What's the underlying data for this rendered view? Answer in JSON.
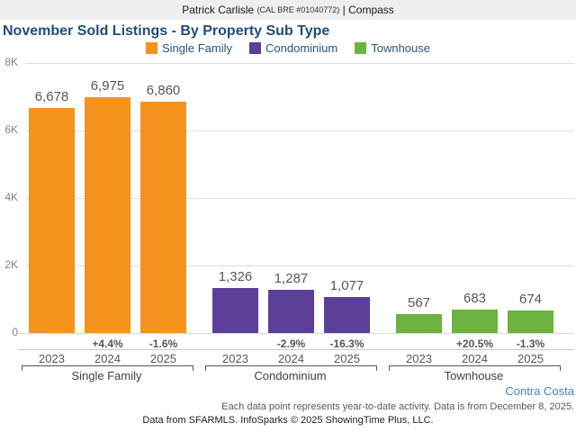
{
  "header": {
    "name": "Patrick Carlisle",
    "license": "(CAL BRE #01040772)",
    "separator": "|",
    "company": "Compass"
  },
  "title": "November Sold Listings - By Property Sub Type",
  "region_label": "Contra Costa",
  "footnote": "Each data point represents year-to-date activity. Data is from December 8, 2025.",
  "attribution": "Data from SFARMLS. InfoSparks © 2025 ShowingTime Plus, LLC.",
  "colors": {
    "single_family": "#f6921e",
    "condominium": "#5b3f99",
    "townhouse": "#6cb33f",
    "title_blue": "#1f4e79",
    "legend_blue": "#26547c",
    "region_blue": "#4a7ebd",
    "header_band": "#efefef",
    "gridline": "#dddddd"
  },
  "chart_data": {
    "type": "bar",
    "title": "November Sold Listings - By Property Sub Type",
    "categories": [
      "2023",
      "2024",
      "2025"
    ],
    "groups": [
      {
        "name": "Single Family",
        "color": "#f6921e",
        "values": [
          6678,
          6975,
          6860
        ],
        "value_labels": [
          "6,678",
          "6,975",
          "6,860"
        ],
        "pct_change": [
          null,
          "+4.4%",
          "-1.6%"
        ]
      },
      {
        "name": "Condominium",
        "color": "#5b3f99",
        "values": [
          1326,
          1287,
          1077
        ],
        "value_labels": [
          "1,326",
          "1,287",
          "1,077"
        ],
        "pct_change": [
          null,
          "-2.9%",
          "-16.3%"
        ]
      },
      {
        "name": "Townhouse",
        "color": "#6cb33f",
        "values": [
          567,
          683,
          674
        ],
        "value_labels": [
          "567",
          "683",
          "674"
        ],
        "pct_change": [
          null,
          "+20.5%",
          "-1.3%"
        ]
      }
    ],
    "ylim": [
      0,
      8000
    ],
    "yticks": [
      {
        "label": "8K",
        "value": 8000
      },
      {
        "label": "6K",
        "value": 6000
      },
      {
        "label": "4K",
        "value": 4000
      },
      {
        "label": "2K",
        "value": 2000
      },
      {
        "label": "0",
        "value": 0
      }
    ],
    "legend": [
      "Single Family",
      "Condominium",
      "Townhouse"
    ],
    "legend_position": "top",
    "grid": true
  }
}
